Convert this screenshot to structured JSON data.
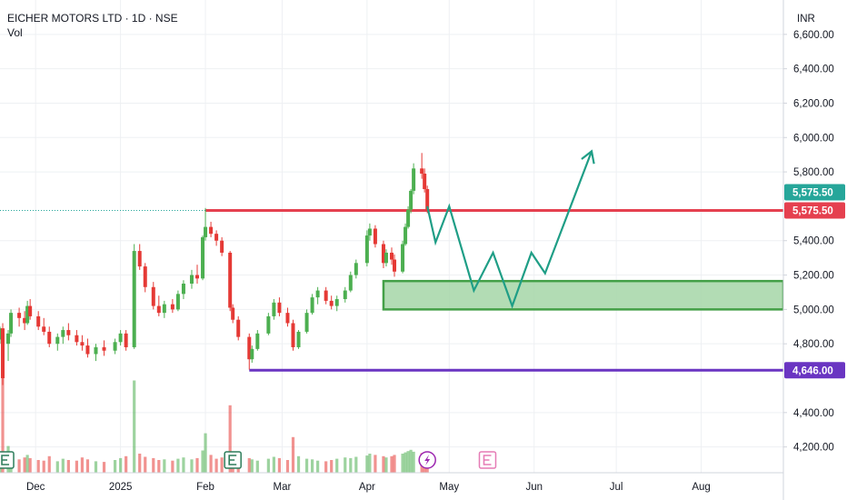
{
  "header": {
    "title": "EICHER MOTORS LTD · 1D · NSE",
    "indicator": "Vol",
    "currency": "INR"
  },
  "colors": {
    "up": "#4caf50",
    "down": "#e53935",
    "resistance": "#e5404f",
    "support": "#6a35c2",
    "zone_fill": "#a5d6a7",
    "zone_border": "#43a047",
    "projection": "#1f9e86",
    "last_price": "#26a69a"
  },
  "chart_data": {
    "type": "candlestick",
    "title": "EICHER MOTORS LTD · 1D · NSE",
    "ylim": [
      4050,
      6800
    ],
    "y_ticks": [
      "6,600.00",
      "6,400.00",
      "6,200.00",
      "6,000.00",
      "5,800.00",
      "5,400.00",
      "5,200.00",
      "5,000.00",
      "4,800.00",
      "4,400.00",
      "4,200.00"
    ],
    "x_ticks": [
      {
        "label": "Dec",
        "date": "2024-12-01"
      },
      {
        "label": "2025",
        "date": "2025-01-01"
      },
      {
        "label": "Feb",
        "date": "2025-02-01"
      },
      {
        "label": "Mar",
        "date": "2025-03-01"
      },
      {
        "label": "Apr",
        "date": "2025-04-01"
      },
      {
        "label": "May",
        "date": "2025-05-01"
      },
      {
        "label": "Jun",
        "date": "2025-06-01"
      },
      {
        "label": "Jul",
        "date": "2025-07-01"
      },
      {
        "label": "Aug",
        "date": "2025-08-01"
      }
    ],
    "x_range": [
      "2024-11-18",
      "2025-08-31"
    ],
    "price_labels": {
      "last_price": "5,575.50",
      "resistance": "5,575.50",
      "support": "4,646.00"
    },
    "levels": {
      "resistance": {
        "price": 5575.5,
        "from": "2025-02-01"
      },
      "support": {
        "price": 4646,
        "from": "2025-02-17"
      }
    },
    "demand_zone": {
      "from": "2025-04-07",
      "to": "2025-08-31",
      "top": 5165,
      "bottom": 5000
    },
    "projection_path": [
      [
        "2025-04-23",
        5600
      ],
      [
        "2025-04-26",
        5390
      ],
      [
        "2025-05-01",
        5600
      ],
      [
        "2025-05-10",
        5110
      ],
      [
        "2025-05-17",
        5330
      ],
      [
        "2025-05-24",
        5020
      ],
      [
        "2025-05-31",
        5330
      ],
      [
        "2025-06-05",
        5210
      ],
      [
        "2025-06-22",
        5920
      ]
    ],
    "candles": [
      [
        "2024-11-18",
        4825,
        4900,
        4800,
        4890
      ],
      [
        "2024-11-19",
        4890,
        4920,
        4560,
        4600
      ],
      [
        "2024-11-21",
        4800,
        4880,
        4700,
        4860
      ],
      [
        "2024-11-22",
        4860,
        5000,
        4840,
        4980
      ],
      [
        "2024-11-25",
        4980,
        5010,
        4900,
        4950
      ],
      [
        "2024-11-27",
        4950,
        4990,
        4880,
        4920
      ],
      [
        "2024-11-28",
        4920,
        5050,
        4910,
        5020
      ],
      [
        "2024-11-29",
        5020,
        5060,
        4940,
        4960
      ],
      [
        "2024-12-02",
        4960,
        4990,
        4880,
        4900
      ],
      [
        "2024-12-04",
        4900,
        4950,
        4850,
        4870
      ],
      [
        "2024-12-06",
        4870,
        4900,
        4780,
        4800
      ],
      [
        "2024-12-09",
        4800,
        4860,
        4760,
        4840
      ],
      [
        "2024-12-11",
        4840,
        4900,
        4800,
        4880
      ],
      [
        "2024-12-13",
        4880,
        4920,
        4820,
        4850
      ],
      [
        "2024-12-16",
        4850,
        4880,
        4790,
        4810
      ],
      [
        "2024-12-18",
        4810,
        4850,
        4760,
        4790
      ],
      [
        "2024-12-20",
        4790,
        4830,
        4720,
        4740
      ],
      [
        "2024-12-23",
        4740,
        4800,
        4700,
        4780
      ],
      [
        "2024-12-26",
        4780,
        4820,
        4730,
        4760
      ],
      [
        "2024-12-30",
        4760,
        4830,
        4740,
        4810
      ],
      [
        "2025-01-01",
        4810,
        4880,
        4790,
        4860
      ],
      [
        "2025-01-03",
        4860,
        4880,
        4760,
        4780
      ],
      [
        "2025-01-06",
        4780,
        5380,
        4770,
        5340
      ],
      [
        "2025-01-08",
        5340,
        5380,
        5230,
        5250
      ],
      [
        "2025-01-10",
        5250,
        5270,
        5100,
        5130
      ],
      [
        "2025-01-13",
        5130,
        5160,
        5000,
        5020
      ],
      [
        "2025-01-15",
        5020,
        5080,
        4960,
        4980
      ],
      [
        "2025-01-17",
        4980,
        5050,
        4950,
        5030
      ],
      [
        "2025-01-20",
        5030,
        5060,
        4980,
        5000
      ],
      [
        "2025-01-22",
        5000,
        5110,
        4990,
        5090
      ],
      [
        "2025-01-24",
        5090,
        5170,
        5060,
        5150
      ],
      [
        "2025-01-27",
        5150,
        5230,
        5120,
        5200
      ],
      [
        "2025-01-29",
        5200,
        5260,
        5150,
        5180
      ],
      [
        "2025-01-31",
        5180,
        5430,
        5170,
        5420
      ],
      [
        "2025-02-01",
        5420,
        5590,
        5400,
        5480
      ],
      [
        "2025-02-03",
        5480,
        5510,
        5420,
        5440
      ],
      [
        "2025-02-05",
        5440,
        5460,
        5370,
        5400
      ],
      [
        "2025-02-07",
        5400,
        5420,
        5310,
        5330
      ],
      [
        "2025-02-10",
        5330,
        5340,
        4990,
        5010
      ],
      [
        "2025-02-11",
        5010,
        5030,
        4920,
        4940
      ],
      [
        "2025-02-13",
        4940,
        4960,
        4820,
        4840
      ],
      [
        "2025-02-17",
        4840,
        4860,
        4650,
        4710
      ],
      [
        "2025-02-18",
        4710,
        4790,
        4690,
        4770
      ],
      [
        "2025-02-20",
        4770,
        4880,
        4760,
        4860
      ],
      [
        "2025-02-24",
        4860,
        4980,
        4850,
        4960
      ],
      [
        "2025-02-26",
        4960,
        5060,
        4940,
        5040
      ],
      [
        "2025-02-28",
        5040,
        5070,
        4960,
        4980
      ],
      [
        "2025-03-03",
        4980,
        5010,
        4900,
        4920
      ],
      [
        "2025-03-05",
        4920,
        4940,
        4760,
        4780
      ],
      [
        "2025-03-07",
        4780,
        4880,
        4770,
        4870
      ],
      [
        "2025-03-10",
        4870,
        5000,
        4860,
        4980
      ],
      [
        "2025-03-12",
        4980,
        5090,
        4970,
        5070
      ],
      [
        "2025-03-14",
        5070,
        5130,
        5030,
        5110
      ],
      [
        "2025-03-17",
        5110,
        5130,
        5030,
        5050
      ],
      [
        "2025-03-19",
        5050,
        5080,
        5000,
        5020
      ],
      [
        "2025-03-21",
        5020,
        5080,
        4990,
        5060
      ],
      [
        "2025-03-24",
        5060,
        5130,
        5040,
        5110
      ],
      [
        "2025-03-26",
        5110,
        5220,
        5100,
        5200
      ],
      [
        "2025-03-28",
        5200,
        5290,
        5180,
        5270
      ],
      [
        "2025-04-01",
        5270,
        5460,
        5250,
        5430
      ],
      [
        "2025-04-02",
        5430,
        5500,
        5400,
        5470
      ],
      [
        "2025-04-04",
        5470,
        5490,
        5360,
        5380
      ],
      [
        "2025-04-07",
        5380,
        5400,
        5240,
        5270
      ],
      [
        "2025-04-08",
        5270,
        5350,
        5250,
        5330
      ],
      [
        "2025-04-10",
        5330,
        5360,
        5260,
        5290
      ],
      [
        "2025-04-11",
        5290,
        5320,
        5190,
        5220
      ],
      [
        "2025-04-14",
        5220,
        5400,
        5210,
        5380
      ],
      [
        "2025-04-15",
        5380,
        5500,
        5370,
        5480
      ],
      [
        "2025-04-16",
        5480,
        5600,
        5470,
        5580
      ],
      [
        "2025-04-17",
        5580,
        5700,
        5560,
        5690
      ],
      [
        "2025-04-18",
        5690,
        5850,
        5670,
        5820
      ],
      [
        "2025-04-21",
        5820,
        5910,
        5760,
        5790
      ],
      [
        "2025-04-22",
        5790,
        5820,
        5680,
        5700
      ],
      [
        "2025-04-23",
        5700,
        5720,
        5560,
        5575.5
      ]
    ],
    "volume_ylim": [
      0,
      2000
    ],
    "volume": [
      [
        "2024-11-18",
        250
      ],
      [
        "2024-11-19",
        1900
      ],
      [
        "2024-11-21",
        420
      ],
      [
        "2024-11-22",
        300
      ],
      [
        "2024-11-25",
        210
      ],
      [
        "2024-11-27",
        240
      ],
      [
        "2024-11-28",
        280
      ],
      [
        "2024-11-29",
        230
      ],
      [
        "2024-12-02",
        200
      ],
      [
        "2024-12-04",
        190
      ],
      [
        "2024-12-06",
        260
      ],
      [
        "2024-12-09",
        180
      ],
      [
        "2024-12-11",
        220
      ],
      [
        "2024-12-13",
        200
      ],
      [
        "2024-12-16",
        190
      ],
      [
        "2024-12-18",
        240
      ],
      [
        "2024-12-20",
        210
      ],
      [
        "2024-12-23",
        180
      ],
      [
        "2024-12-26",
        170
      ],
      [
        "2024-12-30",
        200
      ],
      [
        "2025-01-01",
        230
      ],
      [
        "2025-01-03",
        260
      ],
      [
        "2025-01-06",
        1450
      ],
      [
        "2025-01-08",
        300
      ],
      [
        "2025-01-10",
        250
      ],
      [
        "2025-01-13",
        230
      ],
      [
        "2025-01-15",
        200
      ],
      [
        "2025-01-17",
        210
      ],
      [
        "2025-01-20",
        190
      ],
      [
        "2025-01-22",
        220
      ],
      [
        "2025-01-24",
        240
      ],
      [
        "2025-01-27",
        210
      ],
      [
        "2025-01-29",
        230
      ],
      [
        "2025-01-31",
        350
      ],
      [
        "2025-02-01",
        620
      ],
      [
        "2025-02-03",
        280
      ],
      [
        "2025-02-05",
        220
      ],
      [
        "2025-02-07",
        240
      ],
      [
        "2025-02-10",
        1060
      ],
      [
        "2025-02-11",
        300
      ],
      [
        "2025-02-13",
        260
      ],
      [
        "2025-02-17",
        230
      ],
      [
        "2025-02-18",
        210
      ],
      [
        "2025-02-20",
        190
      ],
      [
        "2025-02-24",
        220
      ],
      [
        "2025-02-26",
        250
      ],
      [
        "2025-02-28",
        230
      ],
      [
        "2025-03-03",
        200
      ],
      [
        "2025-03-05",
        560
      ],
      [
        "2025-03-07",
        260
      ],
      [
        "2025-03-10",
        220
      ],
      [
        "2025-03-12",
        210
      ],
      [
        "2025-03-14",
        190
      ],
      [
        "2025-03-17",
        180
      ],
      [
        "2025-03-19",
        200
      ],
      [
        "2025-03-21",
        220
      ],
      [
        "2025-03-24",
        240
      ],
      [
        "2025-03-26",
        230
      ],
      [
        "2025-03-28",
        250
      ],
      [
        "2025-04-01",
        270
      ],
      [
        "2025-04-02",
        300
      ],
      [
        "2025-04-04",
        280
      ],
      [
        "2025-04-07",
        260
      ],
      [
        "2025-04-08",
        240
      ],
      [
        "2025-04-10",
        260
      ],
      [
        "2025-04-11",
        280
      ],
      [
        "2025-04-14",
        300
      ],
      [
        "2025-04-15",
        320
      ],
      [
        "2025-04-16",
        340
      ],
      [
        "2025-04-17",
        360
      ],
      [
        "2025-04-18",
        330
      ],
      [
        "2025-04-21",
        310
      ],
      [
        "2025-04-22",
        290
      ],
      [
        "2025-04-23",
        270
      ]
    ],
    "event_markers": [
      {
        "type": "earnings",
        "date": "2024-11-20"
      },
      {
        "type": "earnings",
        "date": "2025-02-11"
      },
      {
        "type": "dividend",
        "date": "2025-04-23"
      },
      {
        "type": "earnings-upcoming",
        "date": "2025-05-15"
      }
    ],
    "grid": true,
    "legend": "none"
  }
}
